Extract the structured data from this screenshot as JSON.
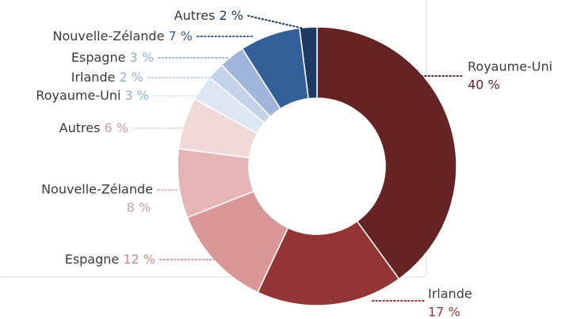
{
  "chart_data": {
    "type": "donut",
    "categories": [
      "Royaume-Uni",
      "Irlande",
      "Espagne",
      "Nouvelle-Zélande",
      "Autres",
      "Royaume-Uni",
      "Irlande",
      "Espagne",
      "Nouvelle-Zélande",
      "Autres"
    ],
    "values": [
      40,
      17,
      12,
      8,
      6,
      3,
      2,
      3,
      7,
      2
    ],
    "value_labels": [
      "40 %",
      "17 %",
      "12 %",
      "8 %",
      "6 %",
      "3 %",
      "2 %",
      "3 %",
      "7 %",
      "2 %"
    ],
    "colors": [
      "#652423",
      "#943535",
      "#d99797",
      "#e6b5b5",
      "#f2d9d9",
      "#dde6f3",
      "#c4d3ea",
      "#9fb6da",
      "#34609a",
      "#1d3a63"
    ]
  }
}
